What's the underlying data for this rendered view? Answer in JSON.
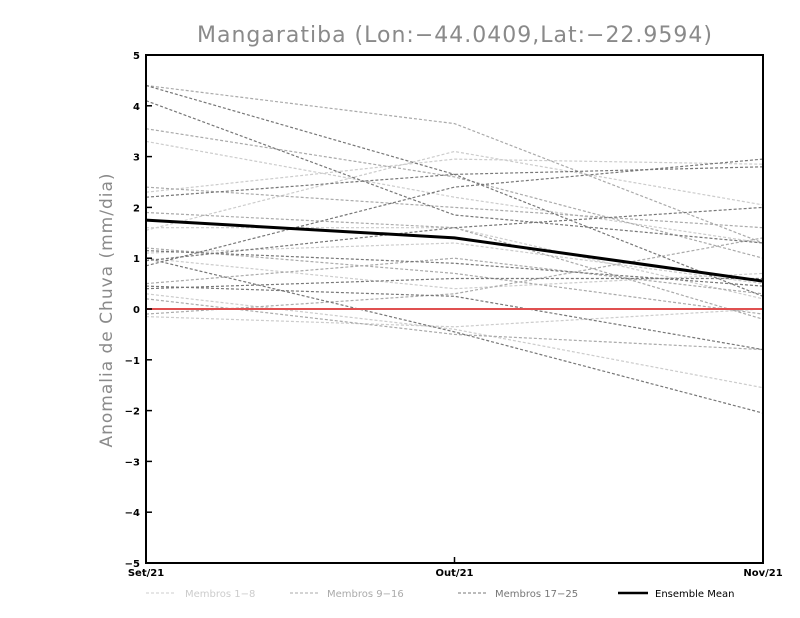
{
  "chart_data": {
    "type": "line",
    "title": "Mangaratiba (Lon:−44.0409,Lat:−22.9594)",
    "ylabel": "Anomalia de Chuva (mm/dia)",
    "xlabel": "",
    "categories": [
      "Set/21",
      "Out/21",
      "Nov/21"
    ],
    "ylim": [
      -5,
      5
    ],
    "yticks": [
      {
        "value": 5,
        "label": "5"
      },
      {
        "value": 4,
        "label": "4"
      },
      {
        "value": 3,
        "label": "3"
      },
      {
        "value": 2,
        "label": "2"
      },
      {
        "value": 1,
        "label": "1"
      },
      {
        "value": 0,
        "label": "0"
      },
      {
        "value": -1,
        "label": "−1"
      },
      {
        "value": -2,
        "label": "−2"
      },
      {
        "value": -3,
        "label": "−3"
      },
      {
        "value": -4,
        "label": "−4"
      },
      {
        "value": -5,
        "label": "−5"
      }
    ],
    "legend": [
      {
        "label": "Membros 1−8",
        "color": "#cccccc",
        "style": "dashed",
        "group": "g1"
      },
      {
        "label": "Membros 9−16",
        "color": "#aaaaaa",
        "style": "dashed",
        "group": "g2"
      },
      {
        "label": "Membros 17−25",
        "color": "#777777",
        "style": "dashed",
        "group": "g3"
      },
      {
        "label": "Ensemble Mean",
        "color": "#000000",
        "style": "solid",
        "group": "mean"
      }
    ],
    "zero_line_color": "#e05050",
    "series": [
      {
        "name": "m1",
        "group": "g1",
        "values": [
          1.55,
          3.1,
          2.05
        ]
      },
      {
        "name": "m2",
        "group": "g1",
        "values": [
          3.3,
          2.2,
          1.3
        ]
      },
      {
        "name": "m3",
        "group": "g1",
        "values": [
          2.3,
          2.95,
          2.85
        ]
      },
      {
        "name": "m4",
        "group": "g1",
        "values": [
          1.0,
          0.4,
          0.7
        ]
      },
      {
        "name": "m5",
        "group": "g1",
        "values": [
          0.3,
          -0.4,
          -1.55
        ]
      },
      {
        "name": "m6",
        "group": "g1",
        "values": [
          -0.15,
          -0.35,
          0.0
        ]
      },
      {
        "name": "m7",
        "group": "g1",
        "values": [
          1.6,
          1.6,
          0.2
        ]
      },
      {
        "name": "m8",
        "group": "g1",
        "values": [
          1.1,
          1.3,
          0.5
        ]
      },
      {
        "name": "m9",
        "group": "g2",
        "values": [
          4.4,
          3.65,
          1.3
        ]
      },
      {
        "name": "m10",
        "group": "g2",
        "values": [
          3.55,
          2.6,
          1.0
        ]
      },
      {
        "name": "m11",
        "group": "g2",
        "values": [
          2.4,
          2.0,
          1.6
        ]
      },
      {
        "name": "m12",
        "group": "g2",
        "values": [
          1.9,
          1.6,
          -0.2
        ]
      },
      {
        "name": "m13",
        "group": "g2",
        "values": [
          0.5,
          1.0,
          0.3
        ]
      },
      {
        "name": "m14",
        "group": "g2",
        "values": [
          0.2,
          -0.5,
          -0.8
        ]
      },
      {
        "name": "m15",
        "group": "g2",
        "values": [
          -0.1,
          0.3,
          1.4
        ]
      },
      {
        "name": "m16",
        "group": "g2",
        "values": [
          1.2,
          0.7,
          -0.1
        ]
      },
      {
        "name": "m17",
        "group": "g3",
        "values": [
          4.1,
          1.85,
          1.3
        ]
      },
      {
        "name": "m18",
        "group": "g3",
        "values": [
          4.4,
          2.65,
          0.25
        ]
      },
      {
        "name": "m19",
        "group": "g3",
        "values": [
          2.2,
          2.65,
          2.8
        ]
      },
      {
        "name": "m20",
        "group": "g3",
        "values": [
          0.85,
          2.4,
          2.95
        ]
      },
      {
        "name": "m21",
        "group": "g3",
        "values": [
          0.95,
          1.6,
          2.0
        ]
      },
      {
        "name": "m22",
        "group": "g3",
        "values": [
          1.0,
          -0.45,
          -2.05
        ]
      },
      {
        "name": "m23",
        "group": "g3",
        "values": [
          0.4,
          0.6,
          0.6
        ]
      },
      {
        "name": "m24",
        "group": "g3",
        "values": [
          0.45,
          0.25,
          -0.8
        ]
      },
      {
        "name": "m25",
        "group": "g3",
        "values": [
          1.15,
          0.9,
          0.45
        ]
      },
      {
        "name": "Ensemble Mean",
        "group": "mean",
        "values": [
          1.75,
          1.4,
          0.55
        ]
      }
    ]
  }
}
